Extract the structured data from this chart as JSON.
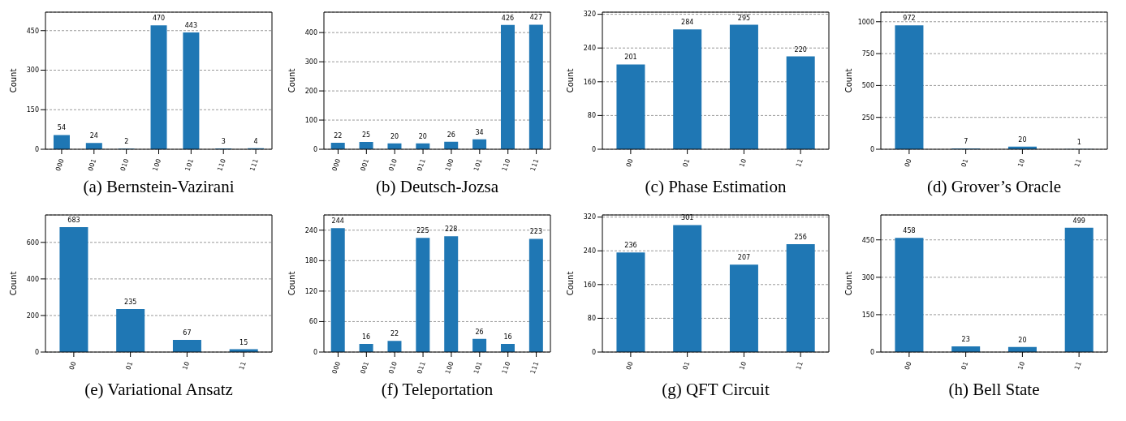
{
  "chart_data": [
    {
      "type": "bar",
      "title": "(a) Bernstein-Vazirani",
      "ylabel": "Count",
      "categories": [
        "000",
        "001",
        "010",
        "100",
        "101",
        "110",
        "111"
      ],
      "values": [
        54,
        24,
        2,
        470,
        443,
        3,
        4
      ],
      "color": "#1f77b4",
      "ylim": [
        0,
        520
      ],
      "yticks": [
        0,
        150,
        300,
        450
      ],
      "grid": "y",
      "data_labels": true
    },
    {
      "type": "bar",
      "title": "(b) Deutsch-Jozsa",
      "ylabel": "Count",
      "categories": [
        "000",
        "001",
        "010",
        "011",
        "100",
        "101",
        "110",
        "111"
      ],
      "values": [
        22,
        25,
        20,
        20,
        26,
        34,
        426,
        427
      ],
      "color": "#1f77b4",
      "ylim": [
        0,
        470
      ],
      "yticks": [
        0,
        100,
        200,
        300,
        400
      ],
      "grid": "y",
      "data_labels": true
    },
    {
      "type": "bar",
      "title": "(c) Phase Estimation",
      "ylabel": "Count",
      "categories": [
        "00",
        "01",
        "10",
        "11"
      ],
      "values": [
        201,
        284,
        295,
        220
      ],
      "color": "#1f77b4",
      "ylim": [
        0,
        325
      ],
      "yticks": [
        0,
        80,
        160,
        240,
        320
      ],
      "grid": "y",
      "data_labels": true
    },
    {
      "type": "bar",
      "title": "(d) Grover’s Oracle",
      "ylabel": "Count",
      "categories": [
        "00",
        "01",
        "10",
        "11"
      ],
      "values": [
        972,
        7,
        20,
        1
      ],
      "color": "#1f77b4",
      "ylim": [
        0,
        1075
      ],
      "yticks": [
        0,
        250,
        500,
        750,
        1000
      ],
      "grid": "y",
      "data_labels": true
    },
    {
      "type": "bar",
      "title": "(e) Variational Ansatz",
      "ylabel": "Count",
      "categories": [
        "00",
        "01",
        "10",
        "11"
      ],
      "values": [
        683,
        235,
        67,
        15
      ],
      "color": "#1f77b4",
      "ylim": [
        0,
        750
      ],
      "yticks": [
        0,
        200,
        400,
        600
      ],
      "grid": "y",
      "data_labels": true
    },
    {
      "type": "bar",
      "title": "(f) Teleportation",
      "ylabel": "Count",
      "categories": [
        "000",
        "001",
        "010",
        "011",
        "100",
        "101",
        "110",
        "111"
      ],
      "values": [
        244,
        16,
        22,
        225,
        228,
        26,
        16,
        223
      ],
      "color": "#1f77b4",
      "ylim": [
        0,
        270
      ],
      "yticks": [
        0,
        60,
        120,
        180,
        240
      ],
      "grid": "y",
      "data_labels": true
    },
    {
      "type": "bar",
      "title": "(g) QFT Circuit",
      "ylabel": "Count",
      "categories": [
        "00",
        "01",
        "10",
        "11"
      ],
      "values": [
        236,
        301,
        207,
        256
      ],
      "color": "#1f77b4",
      "ylim": [
        0,
        325
      ],
      "yticks": [
        0,
        80,
        160,
        240,
        320
      ],
      "grid": "y",
      "data_labels": true
    },
    {
      "type": "bar",
      "title": "(h) Bell State",
      "ylabel": "Count",
      "categories": [
        "00",
        "01",
        "10",
        "11"
      ],
      "values": [
        458,
        23,
        20,
        499
      ],
      "color": "#1f77b4",
      "ylim": [
        0,
        550
      ],
      "yticks": [
        0,
        150,
        300,
        450
      ],
      "grid": "y",
      "data_labels": true
    }
  ]
}
